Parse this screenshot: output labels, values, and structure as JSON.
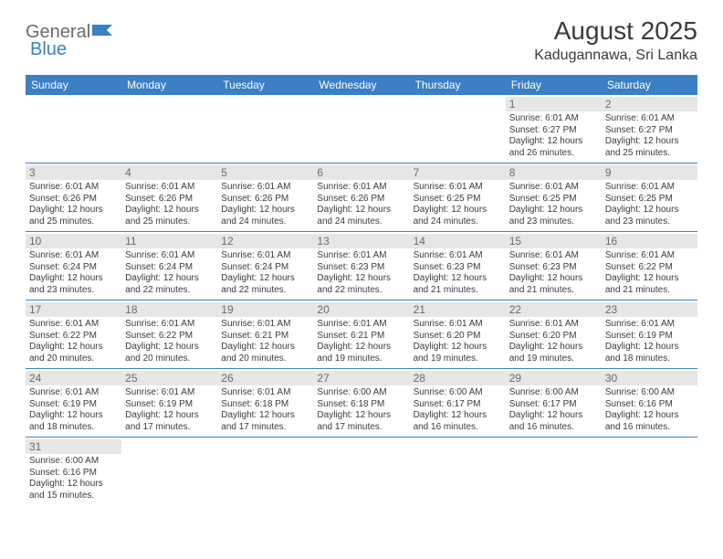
{
  "logo": {
    "text1": "General",
    "text2": "Blue"
  },
  "title": "August 2025",
  "location": "Kadugannawa, Sri Lanka",
  "colors": {
    "header_bg": "#3b7fc4",
    "header_text": "#ffffff",
    "day_bg": "#e6e6e6",
    "day_text": "#6a6a6a",
    "body_text": "#3a3a3a",
    "row_border": "#3b7fc4",
    "background": "#ffffff"
  },
  "day_headers": [
    "Sunday",
    "Monday",
    "Tuesday",
    "Wednesday",
    "Thursday",
    "Friday",
    "Saturday"
  ],
  "weeks": [
    [
      null,
      null,
      null,
      null,
      null,
      {
        "n": "1",
        "sr": "Sunrise: 6:01 AM",
        "ss": "Sunset: 6:27 PM",
        "d1": "Daylight: 12 hours",
        "d2": "and 26 minutes."
      },
      {
        "n": "2",
        "sr": "Sunrise: 6:01 AM",
        "ss": "Sunset: 6:27 PM",
        "d1": "Daylight: 12 hours",
        "d2": "and 25 minutes."
      }
    ],
    [
      {
        "n": "3",
        "sr": "Sunrise: 6:01 AM",
        "ss": "Sunset: 6:26 PM",
        "d1": "Daylight: 12 hours",
        "d2": "and 25 minutes."
      },
      {
        "n": "4",
        "sr": "Sunrise: 6:01 AM",
        "ss": "Sunset: 6:26 PM",
        "d1": "Daylight: 12 hours",
        "d2": "and 25 minutes."
      },
      {
        "n": "5",
        "sr": "Sunrise: 6:01 AM",
        "ss": "Sunset: 6:26 PM",
        "d1": "Daylight: 12 hours",
        "d2": "and 24 minutes."
      },
      {
        "n": "6",
        "sr": "Sunrise: 6:01 AM",
        "ss": "Sunset: 6:26 PM",
        "d1": "Daylight: 12 hours",
        "d2": "and 24 minutes."
      },
      {
        "n": "7",
        "sr": "Sunrise: 6:01 AM",
        "ss": "Sunset: 6:25 PM",
        "d1": "Daylight: 12 hours",
        "d2": "and 24 minutes."
      },
      {
        "n": "8",
        "sr": "Sunrise: 6:01 AM",
        "ss": "Sunset: 6:25 PM",
        "d1": "Daylight: 12 hours",
        "d2": "and 23 minutes."
      },
      {
        "n": "9",
        "sr": "Sunrise: 6:01 AM",
        "ss": "Sunset: 6:25 PM",
        "d1": "Daylight: 12 hours",
        "d2": "and 23 minutes."
      }
    ],
    [
      {
        "n": "10",
        "sr": "Sunrise: 6:01 AM",
        "ss": "Sunset: 6:24 PM",
        "d1": "Daylight: 12 hours",
        "d2": "and 23 minutes."
      },
      {
        "n": "11",
        "sr": "Sunrise: 6:01 AM",
        "ss": "Sunset: 6:24 PM",
        "d1": "Daylight: 12 hours",
        "d2": "and 22 minutes."
      },
      {
        "n": "12",
        "sr": "Sunrise: 6:01 AM",
        "ss": "Sunset: 6:24 PM",
        "d1": "Daylight: 12 hours",
        "d2": "and 22 minutes."
      },
      {
        "n": "13",
        "sr": "Sunrise: 6:01 AM",
        "ss": "Sunset: 6:23 PM",
        "d1": "Daylight: 12 hours",
        "d2": "and 22 minutes."
      },
      {
        "n": "14",
        "sr": "Sunrise: 6:01 AM",
        "ss": "Sunset: 6:23 PM",
        "d1": "Daylight: 12 hours",
        "d2": "and 21 minutes."
      },
      {
        "n": "15",
        "sr": "Sunrise: 6:01 AM",
        "ss": "Sunset: 6:23 PM",
        "d1": "Daylight: 12 hours",
        "d2": "and 21 minutes."
      },
      {
        "n": "16",
        "sr": "Sunrise: 6:01 AM",
        "ss": "Sunset: 6:22 PM",
        "d1": "Daylight: 12 hours",
        "d2": "and 21 minutes."
      }
    ],
    [
      {
        "n": "17",
        "sr": "Sunrise: 6:01 AM",
        "ss": "Sunset: 6:22 PM",
        "d1": "Daylight: 12 hours",
        "d2": "and 20 minutes."
      },
      {
        "n": "18",
        "sr": "Sunrise: 6:01 AM",
        "ss": "Sunset: 6:22 PM",
        "d1": "Daylight: 12 hours",
        "d2": "and 20 minutes."
      },
      {
        "n": "19",
        "sr": "Sunrise: 6:01 AM",
        "ss": "Sunset: 6:21 PM",
        "d1": "Daylight: 12 hours",
        "d2": "and 20 minutes."
      },
      {
        "n": "20",
        "sr": "Sunrise: 6:01 AM",
        "ss": "Sunset: 6:21 PM",
        "d1": "Daylight: 12 hours",
        "d2": "and 19 minutes."
      },
      {
        "n": "21",
        "sr": "Sunrise: 6:01 AM",
        "ss": "Sunset: 6:20 PM",
        "d1": "Daylight: 12 hours",
        "d2": "and 19 minutes."
      },
      {
        "n": "22",
        "sr": "Sunrise: 6:01 AM",
        "ss": "Sunset: 6:20 PM",
        "d1": "Daylight: 12 hours",
        "d2": "and 19 minutes."
      },
      {
        "n": "23",
        "sr": "Sunrise: 6:01 AM",
        "ss": "Sunset: 6:19 PM",
        "d1": "Daylight: 12 hours",
        "d2": "and 18 minutes."
      }
    ],
    [
      {
        "n": "24",
        "sr": "Sunrise: 6:01 AM",
        "ss": "Sunset: 6:19 PM",
        "d1": "Daylight: 12 hours",
        "d2": "and 18 minutes."
      },
      {
        "n": "25",
        "sr": "Sunrise: 6:01 AM",
        "ss": "Sunset: 6:19 PM",
        "d1": "Daylight: 12 hours",
        "d2": "and 17 minutes."
      },
      {
        "n": "26",
        "sr": "Sunrise: 6:01 AM",
        "ss": "Sunset: 6:18 PM",
        "d1": "Daylight: 12 hours",
        "d2": "and 17 minutes."
      },
      {
        "n": "27",
        "sr": "Sunrise: 6:00 AM",
        "ss": "Sunset: 6:18 PM",
        "d1": "Daylight: 12 hours",
        "d2": "and 17 minutes."
      },
      {
        "n": "28",
        "sr": "Sunrise: 6:00 AM",
        "ss": "Sunset: 6:17 PM",
        "d1": "Daylight: 12 hours",
        "d2": "and 16 minutes."
      },
      {
        "n": "29",
        "sr": "Sunrise: 6:00 AM",
        "ss": "Sunset: 6:17 PM",
        "d1": "Daylight: 12 hours",
        "d2": "and 16 minutes."
      },
      {
        "n": "30",
        "sr": "Sunrise: 6:00 AM",
        "ss": "Sunset: 6:16 PM",
        "d1": "Daylight: 12 hours",
        "d2": "and 16 minutes."
      }
    ],
    [
      {
        "n": "31",
        "sr": "Sunrise: 6:00 AM",
        "ss": "Sunset: 6:16 PM",
        "d1": "Daylight: 12 hours",
        "d2": "and 15 minutes."
      },
      null,
      null,
      null,
      null,
      null,
      null
    ]
  ]
}
